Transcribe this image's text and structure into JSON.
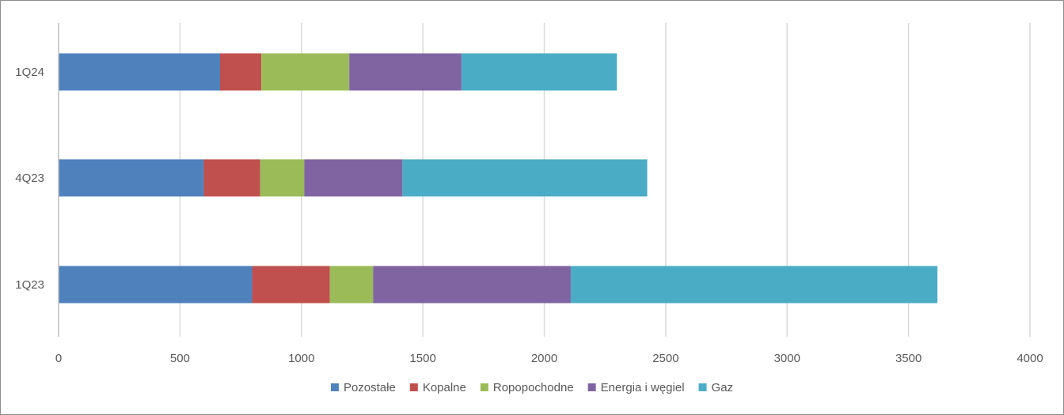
{
  "chart_data": {
    "type": "bar",
    "orientation": "horizontal",
    "stacked": true,
    "categories": [
      "1Q24",
      "4Q23",
      "1Q23"
    ],
    "series": [
      {
        "name": "Pozostałe",
        "color": "#4F81BD",
        "values": [
          665,
          598,
          797
        ]
      },
      {
        "name": "Kopalne",
        "color": "#C0504D",
        "values": [
          170,
          232,
          320
        ]
      },
      {
        "name": "Ropopochodne",
        "color": "#9BBB59",
        "values": [
          362,
          182,
          178
        ]
      },
      {
        "name": "Energia i węgiel",
        "color": "#8064A2",
        "values": [
          462,
          404,
          814
        ]
      },
      {
        "name": "Gaz",
        "color": "#4BACC6",
        "values": [
          640,
          1008,
          1510
        ]
      }
    ],
    "x_ticks": [
      "0",
      "500",
      "1000",
      "1500",
      "2000",
      "2500",
      "3000",
      "3500",
      "4000"
    ],
    "xlim": [
      0,
      4000
    ],
    "grid": "vertical",
    "legend_position": "bottom",
    "title": "",
    "xlabel": "",
    "ylabel": ""
  }
}
